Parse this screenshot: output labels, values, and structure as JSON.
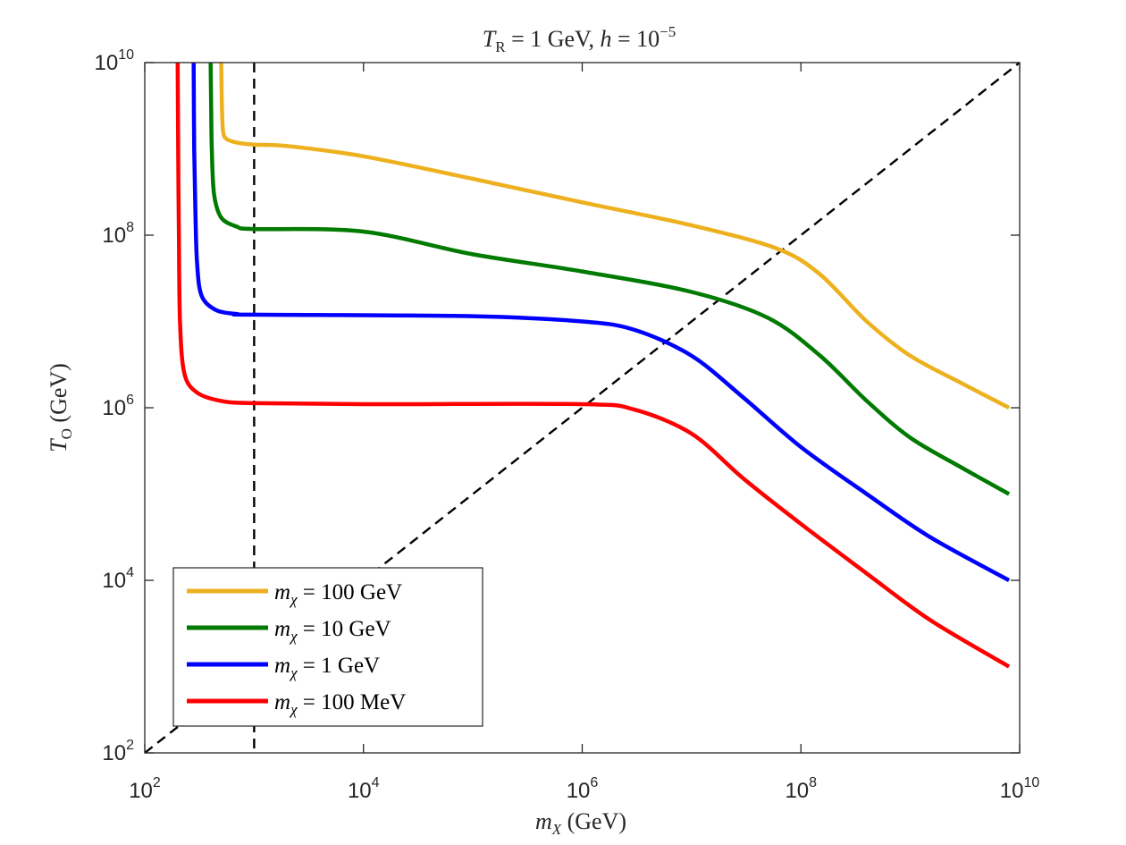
{
  "chart_data": {
    "type": "line",
    "title": "T_R = 1 GeV, h = 10^−5",
    "title_parts": {
      "t_symbol": "T",
      "t_sub": "R",
      "equals_value": " = 1 GeV, ",
      "h_symbol": "h",
      "h_equals": " = 10",
      "h_exp": "−5"
    },
    "xlabel": "m_X (GeV)",
    "xlabel_parts": {
      "symbol": "m",
      "sub": "X",
      "unit": " (GeV)"
    },
    "ylabel": "T_O (GeV)",
    "ylabel_parts": {
      "symbol": "T",
      "sub": "O",
      "unit": " (GeV)"
    },
    "xscale": "log",
    "yscale": "log",
    "xlim": [
      100,
      10000000000
    ],
    "ylim": [
      100,
      10000000000
    ],
    "xticks": [
      {
        "base": "10",
        "exp": "2",
        "value": 100
      },
      {
        "base": "10",
        "exp": "4",
        "value": 10000
      },
      {
        "base": "10",
        "exp": "6",
        "value": 1000000
      },
      {
        "base": "10",
        "exp": "8",
        "value": 100000000
      },
      {
        "base": "10",
        "exp": "10",
        "value": 10000000000
      }
    ],
    "yticks": [
      {
        "base": "10",
        "exp": "2",
        "value": 100
      },
      {
        "base": "10",
        "exp": "4",
        "value": 10000
      },
      {
        "base": "10",
        "exp": "6",
        "value": 1000000
      },
      {
        "base": "10",
        "exp": "8",
        "value": 100000000
      },
      {
        "base": "10",
        "exp": "10",
        "value": 10000000000
      }
    ],
    "grid": false,
    "legend_position": "bottom-left",
    "series": [
      {
        "name": "m_χ = 100 GeV",
        "legend_parts": {
          "symbol": "m",
          "sub": "χ",
          "rest": " = 100 GeV"
        },
        "color": "#EDB120",
        "points": [
          [
            500,
            10000000000
          ],
          [
            508,
            3000000000
          ],
          [
            520,
            1600000000
          ],
          [
            560,
            1300000000
          ],
          [
            700,
            1180000000
          ],
          [
            1000,
            1120000000
          ],
          [
            2000,
            1080000000
          ],
          [
            10000,
            820000000
          ],
          [
            100000,
            450000000
          ],
          [
            1000000,
            240000000
          ],
          [
            10000000,
            130000000
          ],
          [
            60000000,
            70000000
          ],
          [
            150000000,
            35000000
          ],
          [
            400000000,
            10000000
          ],
          [
            1000000000,
            4000000
          ],
          [
            3000000000,
            1900000
          ],
          [
            8000000000,
            1000000
          ]
        ]
      },
      {
        "name": "m_χ = 10 GeV",
        "legend_parts": {
          "symbol": "m",
          "sub": "χ",
          "rest": " = 10 GeV"
        },
        "color": "#007A00",
        "points": [
          [
            400,
            10000000000
          ],
          [
            405,
            3000000000
          ],
          [
            410,
            1000000000
          ],
          [
            430,
            300000000
          ],
          [
            500,
            160000000
          ],
          [
            700,
            125000000
          ],
          [
            1000,
            118000000
          ],
          [
            10000,
            110000000
          ],
          [
            100000,
            60000000
          ],
          [
            1000000,
            38000000
          ],
          [
            10000000,
            22000000
          ],
          [
            50000000,
            11000000
          ],
          [
            150000000,
            4000000
          ],
          [
            400000000,
            1200000
          ],
          [
            1000000000,
            450000
          ],
          [
            3000000000,
            200000
          ],
          [
            8000000000,
            100000
          ]
        ]
      },
      {
        "name": "m_χ = 1 GeV",
        "legend_parts": {
          "symbol": "m",
          "sub": "χ",
          "rest": " = 1 GeV"
        },
        "color": "#0000FF",
        "points": [
          [
            280,
            10000000000
          ],
          [
            283,
            1000000000
          ],
          [
            290,
            200000000
          ],
          [
            300,
            50000000
          ],
          [
            330,
            20000000
          ],
          [
            450,
            13500000
          ],
          [
            700,
            12200000
          ],
          [
            1000,
            12000000
          ],
          [
            100000,
            11500000
          ],
          [
            1000000,
            10000000
          ],
          [
            3000000,
            8000000
          ],
          [
            10000000,
            4000000
          ],
          [
            30000000,
            1300000
          ],
          [
            100000000,
            350000
          ],
          [
            400000000,
            100000
          ],
          [
            1500000000,
            32000
          ],
          [
            8000000000,
            10000
          ]
        ]
      },
      {
        "name": "m_χ = 100 MeV",
        "legend_parts": {
          "symbol": "m",
          "sub": "χ",
          "rest": " = 100 MeV"
        },
        "color": "#FF0000",
        "points": [
          [
            200,
            10000000000
          ],
          [
            202,
            1000000000
          ],
          [
            205,
            100000000
          ],
          [
            210,
            10000000
          ],
          [
            230,
            2500000
          ],
          [
            300,
            1500000
          ],
          [
            500,
            1200000
          ],
          [
            1000,
            1130000
          ],
          [
            10000,
            1100000
          ],
          [
            1000000,
            1100000
          ],
          [
            3000000,
            950000
          ],
          [
            10000000,
            500000
          ],
          [
            30000000,
            150000
          ],
          [
            100000000,
            45000
          ],
          [
            400000000,
            12000
          ],
          [
            1500000000,
            3500
          ],
          [
            8000000000,
            1000
          ]
        ]
      }
    ],
    "reference_lines": [
      {
        "name": "vertical dashed line at m_X = 10^3 GeV",
        "kind": "vertical",
        "x": 1000,
        "style": "dashed",
        "color": "#000000"
      },
      {
        "name": "diagonal dashed line T_O = m_X",
        "kind": "diagonal",
        "points": [
          [
            100,
            100
          ],
          [
            10000000000,
            10000000000
          ]
        ],
        "style": "dashed",
        "color": "#000000"
      }
    ]
  }
}
